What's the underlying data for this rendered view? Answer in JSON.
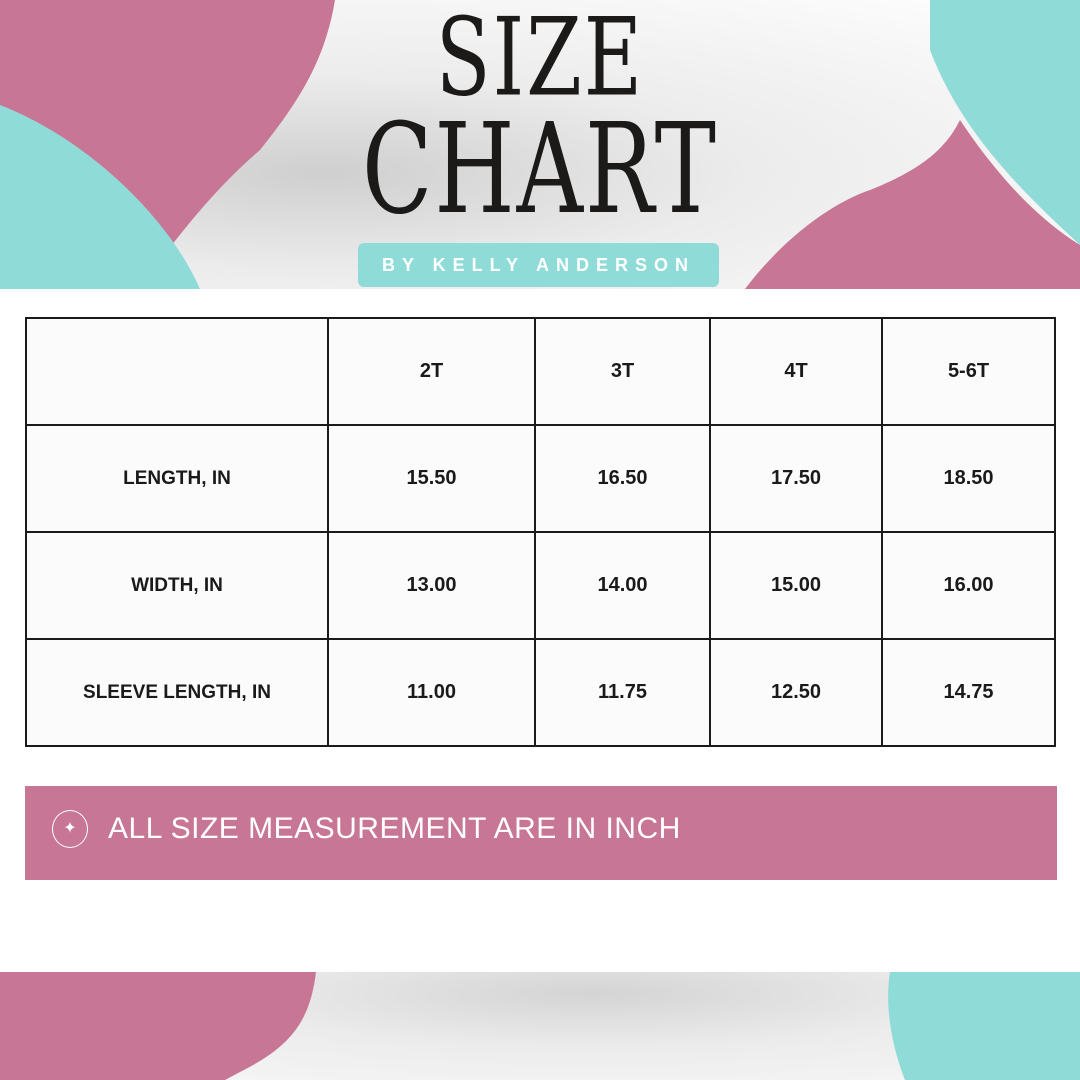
{
  "header": {
    "title_line1": "SIZE",
    "title_line2": "CHART",
    "byline": "BY KELLY ANDERSON"
  },
  "colors": {
    "pink": "#c87695",
    "teal": "#8fdbd7"
  },
  "table": {
    "columns": [
      "",
      "2T",
      "3T",
      "4T",
      "5-6T"
    ],
    "rows": [
      {
        "label": "LENGTH, IN",
        "values": [
          "15.50",
          "16.50",
          "17.50",
          "18.50"
        ]
      },
      {
        "label": "WIDTH, IN",
        "values": [
          "13.00",
          "14.00",
          "15.00",
          "16.00"
        ]
      },
      {
        "label": "SLEEVE LENGTH, IN",
        "values": [
          "11.00",
          "11.75",
          "12.50",
          "14.75"
        ]
      }
    ]
  },
  "note": {
    "icon": "sparkle-icon",
    "text": "ALL SIZE MEASUREMENT ARE IN INCH"
  }
}
